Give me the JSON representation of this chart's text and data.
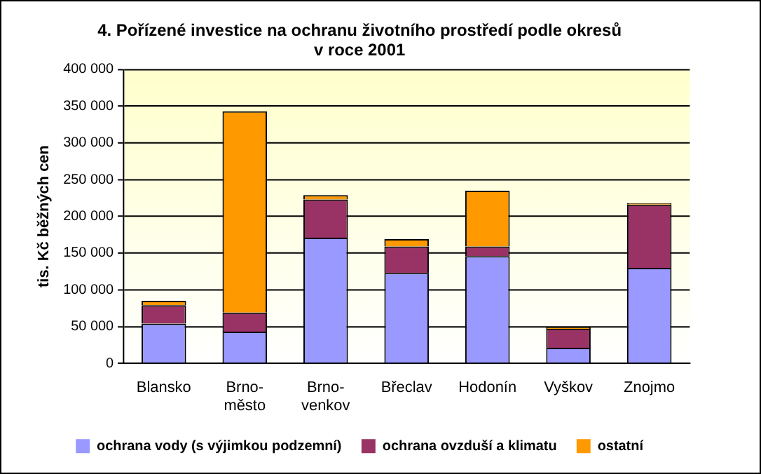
{
  "chart_data": {
    "type": "bar",
    "title": "4. Pořízené investice na ochranu životního prostředí podle okresů\nv roce 2001",
    "ylabel": "tis. Kč běžných cen",
    "categories": [
      "Blansko",
      "Brno-město",
      "Brno-venkov",
      "Břeclav",
      "Hodonín",
      "Vyškov",
      "Znojmo"
    ],
    "stacked": true,
    "legend": "bottom",
    "grid": "y",
    "series": [
      {
        "name": "ochrana vody (s výjimkou podzemní)",
        "color": "#9999ff",
        "values": [
          54000,
          43000,
          171000,
          123000,
          146000,
          21000,
          130000
        ]
      },
      {
        "name": "ochrana ovzduší a klimatu",
        "color": "#993366",
        "values": [
          25000,
          26000,
          52000,
          36000,
          13000,
          26000,
          86000
        ]
      },
      {
        "name": "ostatní",
        "color": "#ff9900",
        "values": [
          6000,
          274000,
          6000,
          10000,
          76000,
          2000,
          2000
        ]
      }
    ],
    "ylim": [
      0,
      400000
    ],
    "yticks": [
      {
        "value": 0,
        "label": "0"
      },
      {
        "value": 50000,
        "label": "50 000"
      },
      {
        "value": 100000,
        "label": "100 000"
      },
      {
        "value": 150000,
        "label": "150 000"
      },
      {
        "value": 200000,
        "label": "200 000"
      },
      {
        "value": 250000,
        "label": "250 000"
      },
      {
        "value": 300000,
        "label": "300 000"
      },
      {
        "value": 350000,
        "label": "350 000"
      },
      {
        "value": 400000,
        "label": "400 000"
      }
    ]
  }
}
